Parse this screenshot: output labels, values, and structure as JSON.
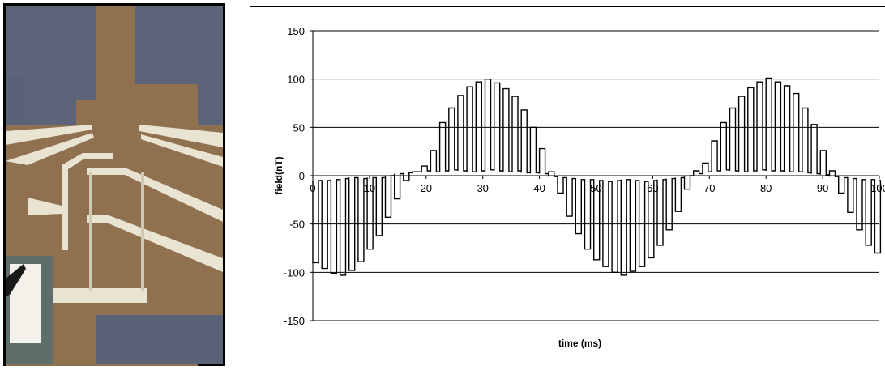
{
  "micrograph": {
    "colors": {
      "frame": "#000000",
      "substrate": "#5d6479",
      "gold": "#8f7150",
      "metal": "#e9e4d1",
      "pad": "#5e6e6b"
    }
  },
  "chart_data": {
    "type": "line",
    "title": "",
    "xlabel": "time (ms)",
    "ylabel": "field(nT)",
    "xlim": [
      0,
      100
    ],
    "ylim": [
      -150,
      150
    ],
    "x_ticks": [
      0,
      10,
      20,
      30,
      40,
      50,
      60,
      70,
      80,
      90,
      100
    ],
    "y_ticks": [
      150,
      100,
      50,
      0,
      -50,
      -100,
      -150
    ],
    "grid": "horizontal",
    "legend": "none",
    "line_color": "#000000",
    "series": [
      {
        "name": "",
        "pulse_width_ms": 1.0,
        "x": [
          0,
          1.6,
          3.2,
          4.8,
          6.4,
          8.0,
          9.6,
          11.2,
          12.8,
          14.4,
          16.0,
          17.6,
          19.2,
          20.8,
          22.4,
          24.0,
          25.6,
          27.2,
          28.8,
          30.4,
          32.0,
          33.6,
          35.2,
          36.8,
          38.4,
          40.0,
          41.6,
          43.2,
          44.8,
          46.4,
          48.0,
          49.6,
          51.2,
          52.8,
          54.4,
          56.0,
          57.6,
          59.2,
          60.8,
          62.4,
          64.0,
          65.6,
          67.2,
          68.8,
          70.4,
          72.0,
          73.6,
          75.2,
          76.8,
          78.4,
          80.0,
          81.6,
          83.2,
          84.8,
          86.4,
          88.0,
          89.6,
          91.2,
          92.8,
          94.4,
          96.0,
          97.6,
          99.2
        ],
        "y": [
          -90,
          -96,
          -101,
          -103,
          -98,
          -89,
          -76,
          -62,
          -43,
          -24,
          -5,
          4,
          10,
          26,
          55,
          70,
          83,
          92,
          97,
          100,
          96,
          90,
          82,
          68,
          50,
          28,
          4,
          -18,
          -42,
          -60,
          -76,
          -87,
          -94,
          -100,
          -103,
          -99,
          -94,
          -85,
          -72,
          -56,
          -37,
          -14,
          5,
          13,
          36,
          55,
          70,
          82,
          91,
          97,
          101,
          97,
          93,
          85,
          70,
          53,
          26,
          5,
          -18,
          -38,
          -56,
          -72,
          -80
        ],
        "baseline": [
          -5,
          -5,
          -4,
          -3,
          -2,
          -3,
          -2,
          -2,
          0,
          2,
          3,
          4,
          5,
          4,
          5,
          6,
          5,
          4,
          5,
          6,
          5,
          4,
          5,
          3,
          3,
          2,
          -1,
          -2,
          -3,
          -4,
          -4,
          -5,
          -6,
          -5,
          -4,
          -5,
          -6,
          -5,
          -4,
          -3,
          -2,
          0,
          2,
          4,
          5,
          6,
          5,
          4,
          5,
          6,
          5,
          5,
          4,
          4,
          3,
          2,
          1,
          -1,
          -2,
          -3,
          -4,
          -4,
          -5
        ]
      }
    ]
  }
}
